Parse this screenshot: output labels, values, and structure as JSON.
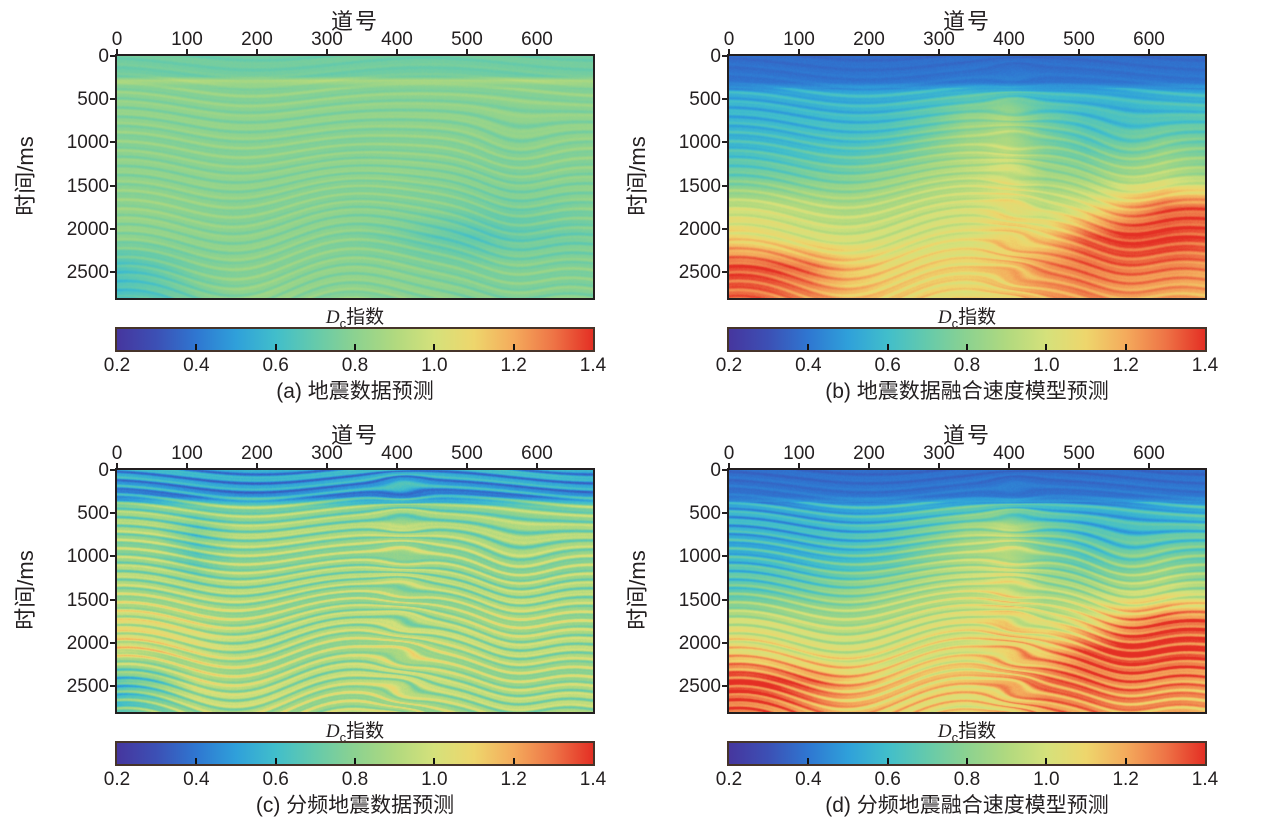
{
  "figure": {
    "background": "#ffffff",
    "text_color": "#231f20",
    "axis_border_color": "#231f20",
    "colorbar_border_color": "#46342a"
  },
  "colormap": {
    "range": [
      0.2,
      1.4
    ],
    "stops": [
      {
        "v": 0.2,
        "c": "#46369e"
      },
      {
        "v": 0.3,
        "c": "#3c50b5"
      },
      {
        "v": 0.4,
        "c": "#2f77d1"
      },
      {
        "v": 0.5,
        "c": "#2fa0da"
      },
      {
        "v": 0.6,
        "c": "#41becb"
      },
      {
        "v": 0.7,
        "c": "#65caab"
      },
      {
        "v": 0.8,
        "c": "#8cd290"
      },
      {
        "v": 0.9,
        "c": "#b0d97f"
      },
      {
        "v": 1.0,
        "c": "#d5e17b"
      },
      {
        "v": 1.1,
        "c": "#eed66c"
      },
      {
        "v": 1.2,
        "c": "#f4ab5c"
      },
      {
        "v": 1.3,
        "c": "#ee7446"
      },
      {
        "v": 1.4,
        "c": "#e42f24"
      }
    ]
  },
  "chart_data": [
    {
      "type": "heatmap",
      "id": "a",
      "caption": "(a) 地震数据预测",
      "x_axis": {
        "title": "道号",
        "ticks": [
          0,
          100,
          200,
          300,
          400,
          500,
          600
        ],
        "range": [
          0,
          680
        ]
      },
      "y_axis": {
        "title": "时间/ms",
        "ticks": [
          0,
          500,
          1000,
          1500,
          2000,
          2500
        ],
        "range": [
          0,
          2800
        ]
      },
      "colorbar": {
        "label_symbol": "D",
        "label_sub": "c",
        "label_suffix": "指数",
        "ticks": [
          "0.2",
          "0.4",
          "0.6",
          "0.8",
          "1.0",
          "1.2",
          "1.4"
        ],
        "range": [
          0.2,
          1.4
        ]
      },
      "grid": {
        "col_trace": [
          0,
          57,
          113,
          170,
          227,
          283,
          340,
          397,
          453,
          510,
          567,
          623,
          680
        ],
        "row_time_ms": [
          0,
          230,
          280,
          340,
          700,
          1050,
          1400,
          1750,
          2100,
          2450,
          2800
        ],
        "values": [
          [
            0.73,
            0.73,
            0.73,
            0.73,
            0.73,
            0.73,
            0.73,
            0.73,
            0.73,
            0.73,
            0.73,
            0.73,
            0.73
          ],
          [
            0.73,
            0.73,
            0.73,
            0.73,
            0.73,
            0.73,
            0.73,
            0.73,
            0.73,
            0.73,
            0.73,
            0.73,
            0.73
          ],
          [
            0.9,
            0.9,
            0.9,
            0.9,
            0.9,
            0.9,
            0.9,
            0.9,
            0.9,
            0.9,
            0.9,
            0.9,
            0.9
          ],
          [
            0.8,
            0.8,
            0.8,
            0.8,
            0.8,
            0.8,
            0.8,
            0.8,
            0.8,
            0.8,
            0.8,
            0.8,
            0.8
          ],
          [
            0.8,
            0.8,
            0.8,
            0.8,
            0.8,
            0.8,
            0.8,
            0.8,
            0.8,
            0.8,
            0.8,
            0.8,
            0.8
          ],
          [
            0.8,
            0.8,
            0.8,
            0.8,
            0.8,
            0.8,
            0.79,
            0.8,
            0.8,
            0.8,
            0.79,
            0.8,
            0.8
          ],
          [
            0.8,
            0.8,
            0.8,
            0.8,
            0.8,
            0.8,
            0.8,
            0.8,
            0.79,
            0.78,
            0.78,
            0.79,
            0.79
          ],
          [
            0.82,
            0.82,
            0.81,
            0.8,
            0.8,
            0.8,
            0.79,
            0.79,
            0.78,
            0.76,
            0.75,
            0.76,
            0.78
          ],
          [
            0.8,
            0.8,
            0.8,
            0.8,
            0.8,
            0.79,
            0.78,
            0.75,
            0.7,
            0.67,
            0.7,
            0.72,
            0.74
          ],
          [
            0.64,
            0.7,
            0.77,
            0.8,
            0.8,
            0.8,
            0.8,
            0.8,
            0.78,
            0.77,
            0.78,
            0.78,
            0.78
          ],
          [
            0.62,
            0.67,
            0.75,
            0.8,
            0.82,
            0.8,
            0.8,
            0.8,
            0.8,
            0.78,
            0.78,
            0.78,
            0.78
          ]
        ]
      },
      "texture": {
        "amp": 0.045,
        "freq": 24,
        "grain": 0.018,
        "top_scale": 0.5,
        "channel": 0.0
      }
    },
    {
      "type": "heatmap",
      "id": "b",
      "caption": "(b) 地震数据融合速度模型预测",
      "x_axis": {
        "title": "道号",
        "ticks": [
          0,
          100,
          200,
          300,
          400,
          500,
          600
        ],
        "range": [
          0,
          680
        ]
      },
      "y_axis": {
        "title": "时间/ms",
        "ticks": [
          0,
          500,
          1000,
          1500,
          2000,
          2500
        ],
        "range": [
          0,
          2800
        ]
      },
      "colorbar": {
        "label_symbol": "D",
        "label_sub": "c",
        "label_suffix": "指数",
        "ticks": [
          "0.2",
          "0.4",
          "0.6",
          "0.8",
          "1.0",
          "1.2",
          "1.4"
        ],
        "range": [
          0.2,
          1.4
        ]
      },
      "grid": {
        "col_trace": [
          0,
          57,
          113,
          170,
          227,
          283,
          340,
          397,
          453,
          510,
          567,
          623,
          680
        ],
        "row_time_ms": [
          0,
          300,
          420,
          700,
          1050,
          1400,
          1750,
          2100,
          2450,
          2800
        ],
        "values": [
          [
            0.37,
            0.37,
            0.37,
            0.37,
            0.37,
            0.37,
            0.37,
            0.37,
            0.37,
            0.37,
            0.37,
            0.37,
            0.37
          ],
          [
            0.4,
            0.4,
            0.4,
            0.4,
            0.4,
            0.4,
            0.41,
            0.41,
            0.4,
            0.4,
            0.4,
            0.4,
            0.4
          ],
          [
            0.55,
            0.55,
            0.55,
            0.55,
            0.56,
            0.58,
            0.62,
            0.62,
            0.58,
            0.56,
            0.55,
            0.56,
            0.56
          ],
          [
            0.56,
            0.56,
            0.57,
            0.58,
            0.6,
            0.68,
            0.8,
            0.8,
            0.7,
            0.62,
            0.6,
            0.63,
            0.65
          ],
          [
            0.6,
            0.61,
            0.62,
            0.64,
            0.68,
            0.78,
            0.88,
            0.88,
            0.78,
            0.7,
            0.73,
            0.79,
            0.75
          ],
          [
            0.72,
            0.73,
            0.74,
            0.76,
            0.82,
            0.88,
            0.92,
            0.95,
            0.85,
            0.85,
            0.88,
            0.93,
            0.88
          ],
          [
            0.97,
            0.96,
            0.93,
            0.9,
            0.92,
            0.95,
            0.98,
            1.0,
            0.95,
            1.02,
            1.18,
            1.32,
            1.32
          ],
          [
            1.1,
            1.05,
            1.0,
            0.98,
            0.98,
            1.0,
            1.02,
            1.05,
            1.12,
            1.32,
            1.38,
            1.38,
            1.35
          ],
          [
            1.36,
            1.35,
            1.3,
            1.16,
            1.1,
            1.1,
            1.1,
            1.16,
            1.26,
            1.3,
            1.3,
            1.28,
            1.25
          ],
          [
            1.3,
            1.3,
            1.25,
            1.16,
            1.12,
            1.1,
            1.06,
            1.12,
            1.2,
            1.25,
            1.22,
            1.2,
            1.18
          ]
        ]
      },
      "texture": {
        "amp": 0.055,
        "freq": 24,
        "grain": 0.02,
        "top_scale": 0.25,
        "channel": 0.06
      }
    },
    {
      "type": "heatmap",
      "id": "c",
      "caption": "(c) 分频地震数据预测",
      "x_axis": {
        "title": "道号",
        "ticks": [
          0,
          100,
          200,
          300,
          400,
          500,
          600
        ],
        "range": [
          0,
          680
        ]
      },
      "y_axis": {
        "title": "时间/ms",
        "ticks": [
          0,
          500,
          1000,
          1500,
          2000,
          2500
        ],
        "range": [
          0,
          2800
        ]
      },
      "colorbar": {
        "label_symbol": "D",
        "label_sub": "c",
        "label_suffix": "指数",
        "ticks": [
          "0.2",
          "0.4",
          "0.6",
          "0.8",
          "1.0",
          "1.2",
          "1.4"
        ],
        "range": [
          0.2,
          1.4
        ]
      },
      "grid": {
        "col_trace": [
          0,
          57,
          113,
          170,
          227,
          283,
          340,
          397,
          453,
          510,
          567,
          623,
          680
        ],
        "row_time_ms": [
          0,
          300,
          420,
          700,
          1050,
          1400,
          1750,
          2100,
          2450,
          2800
        ],
        "values": [
          [
            0.52,
            0.52,
            0.52,
            0.52,
            0.52,
            0.52,
            0.52,
            0.52,
            0.52,
            0.52,
            0.53,
            0.54,
            0.52
          ],
          [
            0.47,
            0.47,
            0.47,
            0.47,
            0.47,
            0.47,
            0.47,
            0.47,
            0.47,
            0.47,
            0.47,
            0.47,
            0.47
          ],
          [
            0.8,
            0.8,
            0.8,
            0.8,
            0.8,
            0.8,
            0.8,
            0.8,
            0.8,
            0.8,
            0.8,
            0.8,
            0.8
          ],
          [
            0.85,
            0.85,
            0.72,
            0.85,
            0.85,
            0.85,
            0.85,
            0.85,
            0.85,
            0.85,
            0.85,
            0.85,
            0.85
          ],
          [
            0.85,
            0.85,
            0.75,
            0.85,
            0.85,
            0.85,
            0.85,
            0.85,
            0.85,
            0.85,
            0.85,
            0.85,
            0.85
          ],
          [
            0.88,
            0.87,
            0.86,
            0.86,
            0.86,
            0.86,
            0.86,
            0.86,
            0.86,
            0.86,
            0.86,
            0.86,
            0.86
          ],
          [
            1.0,
            0.98,
            0.95,
            0.9,
            0.88,
            0.88,
            0.88,
            0.88,
            0.88,
            0.9,
            0.92,
            0.9,
            0.88
          ],
          [
            1.03,
            1.0,
            0.96,
            0.9,
            0.88,
            0.88,
            0.9,
            0.9,
            0.92,
            0.9,
            0.88,
            0.88,
            0.88
          ],
          [
            0.62,
            0.74,
            0.95,
            0.92,
            0.9,
            0.88,
            0.9,
            0.92,
            0.9,
            0.88,
            0.88,
            0.88,
            0.88
          ],
          [
            0.7,
            0.8,
            0.88,
            0.9,
            0.92,
            0.9,
            0.9,
            0.92,
            0.9,
            0.88,
            0.88,
            0.88,
            0.88
          ]
        ]
      },
      "texture": {
        "amp": 0.13,
        "freq": 26,
        "grain": 0.035,
        "top_scale": 0.9,
        "channel": 0.03
      }
    },
    {
      "type": "heatmap",
      "id": "d",
      "caption": "(d) 分频地震融合速度模型预测",
      "x_axis": {
        "title": "道号",
        "ticks": [
          0,
          100,
          200,
          300,
          400,
          500,
          600
        ],
        "range": [
          0,
          680
        ]
      },
      "y_axis": {
        "title": "时间/ms",
        "ticks": [
          0,
          500,
          1000,
          1500,
          2000,
          2500
        ],
        "range": [
          0,
          2800
        ]
      },
      "colorbar": {
        "label_symbol": "D",
        "label_sub": "c",
        "label_suffix": "指数",
        "ticks": [
          "0.2",
          "0.4",
          "0.6",
          "0.8",
          "1.0",
          "1.2",
          "1.4"
        ],
        "range": [
          0.2,
          1.4
        ]
      },
      "grid": {
        "col_trace": [
          0,
          57,
          113,
          170,
          227,
          283,
          340,
          397,
          453,
          510,
          567,
          623,
          680
        ],
        "row_time_ms": [
          0,
          300,
          420,
          700,
          1050,
          1400,
          1750,
          2100,
          2450,
          2800
        ],
        "values": [
          [
            0.37,
            0.37,
            0.37,
            0.37,
            0.37,
            0.37,
            0.37,
            0.37,
            0.37,
            0.37,
            0.37,
            0.37,
            0.37
          ],
          [
            0.4,
            0.4,
            0.4,
            0.4,
            0.4,
            0.4,
            0.41,
            0.41,
            0.4,
            0.4,
            0.4,
            0.4,
            0.4
          ],
          [
            0.54,
            0.54,
            0.54,
            0.55,
            0.56,
            0.6,
            0.66,
            0.66,
            0.6,
            0.56,
            0.55,
            0.56,
            0.57
          ],
          [
            0.55,
            0.55,
            0.56,
            0.58,
            0.62,
            0.72,
            0.85,
            0.85,
            0.72,
            0.62,
            0.6,
            0.63,
            0.66
          ],
          [
            0.6,
            0.6,
            0.62,
            0.65,
            0.7,
            0.82,
            0.9,
            0.9,
            0.8,
            0.72,
            0.75,
            0.8,
            0.76
          ],
          [
            0.7,
            0.72,
            0.74,
            0.78,
            0.85,
            0.9,
            0.95,
            0.97,
            0.88,
            0.88,
            0.9,
            0.95,
            0.9
          ],
          [
            0.96,
            0.95,
            0.92,
            0.9,
            0.93,
            0.97,
            1.0,
            1.02,
            0.97,
            1.06,
            1.22,
            1.33,
            1.33
          ],
          [
            1.12,
            1.06,
            1.0,
            0.98,
            1.0,
            1.02,
            1.05,
            1.08,
            1.16,
            1.33,
            1.38,
            1.36,
            1.34
          ],
          [
            1.37,
            1.36,
            1.3,
            1.18,
            1.12,
            1.12,
            1.12,
            1.18,
            1.28,
            1.3,
            1.28,
            1.26,
            1.24
          ],
          [
            1.3,
            1.28,
            1.24,
            1.16,
            1.12,
            1.1,
            1.06,
            1.12,
            1.22,
            1.24,
            1.22,
            1.2,
            1.18
          ]
        ]
      },
      "texture": {
        "amp": 0.095,
        "freq": 26,
        "grain": 0.022,
        "top_scale": 0.25,
        "channel": 0.06
      }
    }
  ]
}
